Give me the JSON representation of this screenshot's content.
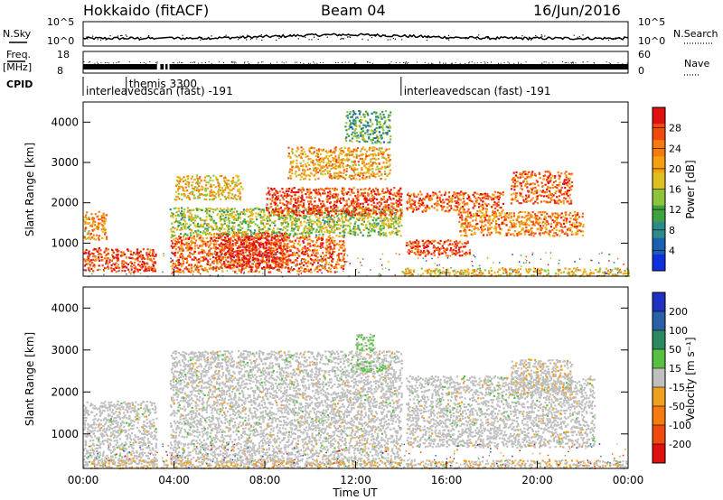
{
  "header": {
    "station": "Hokkaido (fitACF)",
    "beam": "Beam 04",
    "date": "16/Jun/2016"
  },
  "summary_labels": {
    "nsky": "N.Sky",
    "nsky_ticks": [
      "10^5",
      "10^0"
    ],
    "nsearch": "N.Search",
    "nsearch_ticks": [
      "10^5",
      "10^0"
    ],
    "freq": "Freq.",
    "freq_unit": "[MHz]",
    "freq_ticks": [
      "18",
      "8"
    ],
    "nave": "Nave",
    "nave_ticks": [
      "60",
      "0"
    ],
    "cpid": "CPID"
  },
  "cpid_segments": [
    {
      "label": "interleavedscan (fast) -191",
      "start_hour": 0.0,
      "end_hour": 14.0
    },
    {
      "label": "themis 3300",
      "start_hour": 1.9,
      "end_hour": 3.6
    },
    {
      "label": "interleavedscan (fast) -191",
      "start_hour": 14.0,
      "end_hour": 24.0
    }
  ],
  "chart_data": [
    {
      "type": "heatmap",
      "quantity": "Power",
      "xlabel": "",
      "ylabel": "Slant Range [km]",
      "x_ticks": [
        "00:00",
        "04:00",
        "08:00",
        "12:00",
        "16:00",
        "20:00",
        "00:00"
      ],
      "xlim_hours": [
        0,
        24
      ],
      "y_ticks": [
        "1000",
        "2000",
        "3000",
        "4000"
      ],
      "ylim": [
        180,
        4500
      ],
      "colorbar_label": "Power [dB]",
      "colorbar_ticks": [
        "4",
        "8",
        "12",
        "16",
        "20",
        "24",
        "28"
      ],
      "colorbar_range": [
        0,
        30
      ],
      "colors": [
        "#1030e0",
        "#1a5fb0",
        "#2c8a8a",
        "#3fa23f",
        "#8cc43c",
        "#e0c020",
        "#f5a010",
        "#f57a10",
        "#f04a10",
        "#e01010"
      ],
      "data_gaps_hours": [
        [
          3.25,
          3.4
        ],
        [
          3.55,
          3.62
        ],
        [
          3.72,
          3.8
        ]
      ],
      "features": [
        {
          "start_hour": 0.0,
          "end_hour": 3.2,
          "range_km": [
            300,
            900
          ],
          "value_db": 26
        },
        {
          "start_hour": 0.0,
          "end_hour": 1.0,
          "range_km": [
            1100,
            1800
          ],
          "value_db": 20
        },
        {
          "start_hour": 3.8,
          "end_hour": 11.5,
          "range_km": [
            300,
            1200
          ],
          "value_db": 24
        },
        {
          "start_hour": 5.8,
          "end_hour": 9.0,
          "range_km": [
            400,
            1300
          ],
          "value_db": 28
        },
        {
          "start_hour": 3.8,
          "end_hour": 14.0,
          "range_km": [
            1200,
            1900
          ],
          "value_db": 14
        },
        {
          "start_hour": 4.0,
          "end_hour": 7.0,
          "range_km": [
            2100,
            2700
          ],
          "value_db": 18
        },
        {
          "start_hour": 8.0,
          "end_hour": 14.0,
          "range_km": [
            1700,
            2400
          ],
          "value_db": 26
        },
        {
          "start_hour": 9.0,
          "end_hour": 13.5,
          "range_km": [
            2600,
            3400
          ],
          "value_db": 20
        },
        {
          "start_hour": 11.5,
          "end_hour": 13.5,
          "range_km": [
            3500,
            4300
          ],
          "value_db": 10
        },
        {
          "start_hour": 14.2,
          "end_hour": 17.0,
          "range_km": [
            700,
            1100
          ],
          "value_db": 26
        },
        {
          "start_hour": 14.2,
          "end_hour": 18.5,
          "range_km": [
            1800,
            2300
          ],
          "value_db": 24
        },
        {
          "start_hour": 16.5,
          "end_hour": 22.0,
          "range_km": [
            1200,
            1800
          ],
          "value_db": 22
        },
        {
          "start_hour": 18.8,
          "end_hour": 21.5,
          "range_km": [
            2000,
            2800
          ],
          "value_db": 24
        },
        {
          "start_hour": 14.0,
          "end_hour": 24.0,
          "range_km": [
            200,
            400
          ],
          "value_db": 18
        }
      ]
    },
    {
      "type": "heatmap",
      "quantity": "Velocity",
      "xlabel": "Time UT",
      "ylabel": "Slant Range [km]",
      "x_ticks": [
        "00:00",
        "04:00",
        "08:00",
        "12:00",
        "16:00",
        "20:00",
        "00:00"
      ],
      "xlim_hours": [
        0,
        24
      ],
      "y_ticks": [
        "1000",
        "2000",
        "3000",
        "4000"
      ],
      "ylim": [
        180,
        4500
      ],
      "colorbar_label": "Velocity [m s⁻¹]",
      "colorbar_ticks": [
        "200",
        "100",
        "50",
        "15",
        "-15",
        "-50",
        "-100",
        "-200"
      ],
      "colorbar_range": [
        -250,
        250
      ],
      "colors": [
        "#2030c0",
        "#2a60a8",
        "#2c8a60",
        "#58c040",
        "#bfbfbf",
        "#f0a020",
        "#f57a10",
        "#f04a10",
        "#e01010"
      ],
      "data_gaps_hours": [
        [
          3.25,
          3.4
        ],
        [
          3.55,
          3.62
        ],
        [
          3.72,
          3.8
        ]
      ],
      "features": [
        {
          "start_hour": 0.0,
          "end_hour": 3.2,
          "range_km": [
            300,
            1800
          ],
          "value_ms": 0
        },
        {
          "start_hour": 3.8,
          "end_hour": 14.0,
          "range_km": [
            300,
            3000
          ],
          "value_ms": 0
        },
        {
          "start_hour": 12.0,
          "end_hour": 13.3,
          "range_km": [
            2500,
            2800
          ],
          "value_ms": 40
        },
        {
          "start_hour": 12.0,
          "end_hour": 12.8,
          "range_km": [
            3000,
            3400
          ],
          "value_ms": 40
        },
        {
          "start_hour": 14.2,
          "end_hour": 22.5,
          "range_km": [
            700,
            2400
          ],
          "value_ms": 0
        },
        {
          "start_hour": 18.8,
          "end_hour": 21.5,
          "range_km": [
            2000,
            2800
          ],
          "value_ms": -10
        },
        {
          "start_hour": 0.0,
          "end_hour": 24.0,
          "range_km": [
            200,
            400
          ],
          "value_ms": -20
        }
      ]
    }
  ]
}
